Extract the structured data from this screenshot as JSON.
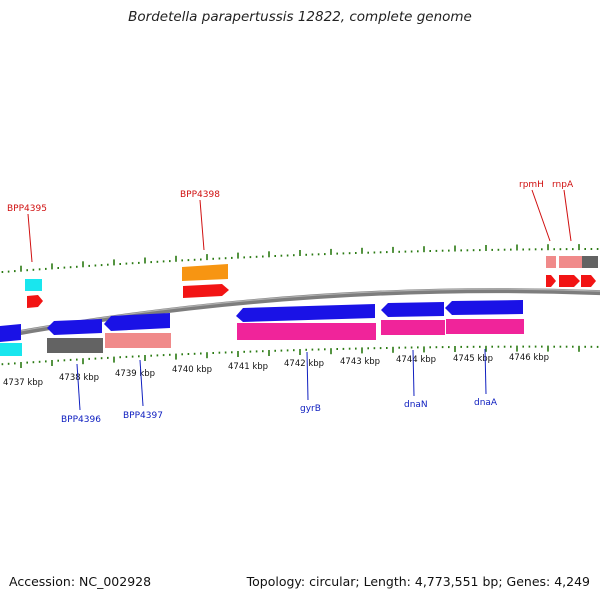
{
  "title": "Bordetella parapertussis 12822, complete genome",
  "footer": {
    "accession": "Accession: NC_002928",
    "stats": "Topology: circular; Length: 4,773,551 bp; Genes: 4,249"
  },
  "ruler_labels": [
    "4737 kbp",
    "4738 kbp",
    "4739 kbp",
    "4740 kbp",
    "4741 kbp",
    "4742 kbp",
    "4743 kbp",
    "4744 kbp",
    "4745 kbp",
    "4746 kbp"
  ],
  "colors": {
    "blue": "#1a12e6",
    "grey": "#636363",
    "salmon": "#f08a8a",
    "magenta": "#f0249a",
    "cyan": "#19e6ee",
    "orange": "#f79512",
    "red": "#f21414",
    "tick": "#2a7a12",
    "backbone": "#808080",
    "label_red": "#d01010",
    "label_blue": "#1020c0"
  },
  "gene_labels": [
    {
      "text": "BPP4395",
      "strand": "forward"
    },
    {
      "text": "BPP4398",
      "strand": "forward"
    },
    {
      "text": "rpmH",
      "strand": "forward"
    },
    {
      "text": "rnpA",
      "strand": "forward"
    },
    {
      "text": "BPP4396",
      "strand": "reverse"
    },
    {
      "text": "BPP4397",
      "strand": "reverse"
    },
    {
      "text": "gyrB",
      "strand": "reverse"
    },
    {
      "text": "dnaN",
      "strand": "reverse"
    },
    {
      "text": "dnaA",
      "strand": "reverse"
    }
  ]
}
